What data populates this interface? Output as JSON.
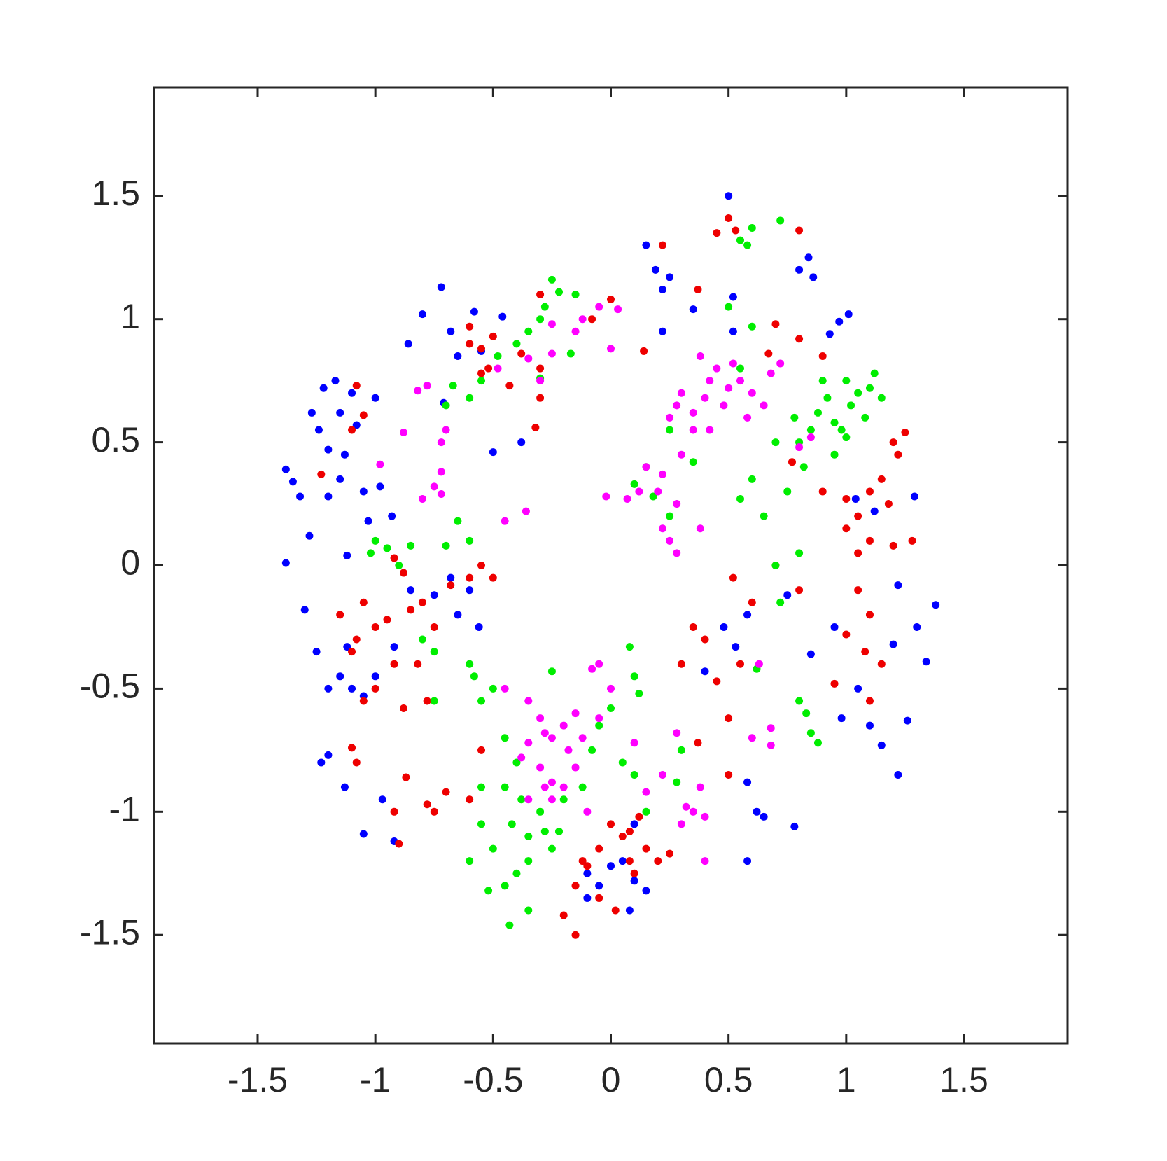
{
  "chart_data": {
    "type": "scatter",
    "xlim": [
      -1.94,
      1.94
    ],
    "ylim": [
      -1.94,
      1.94
    ],
    "xticks": [
      -1.5,
      -1,
      -0.5,
      0,
      0.5,
      1,
      1.5
    ],
    "yticks": [
      -1.5,
      -1,
      -0.5,
      0,
      0.5,
      1,
      1.5
    ],
    "grid": false,
    "series": [
      {
        "color": "#0000ff",
        "x": [
          -1.38,
          -1.35,
          -1.38,
          -1.32,
          -1.28,
          -1.27,
          -1.24,
          -1.22,
          -1.2,
          -1.17,
          -1.15,
          -1.13,
          -1.1,
          -1.08,
          -1.05,
          -1.03,
          -1.0,
          -0.98,
          -0.93,
          -1.15,
          -1.2,
          -1.12,
          -0.86,
          -0.8,
          -0.72,
          -0.68,
          -0.65,
          -0.58,
          -0.55,
          -0.46,
          -0.5,
          -0.38,
          -0.71,
          0.15,
          0.19,
          0.25,
          0.22,
          0.22,
          0.35,
          0.5,
          0.52,
          0.52,
          0.8,
          0.84,
          0.86,
          0.97,
          1.01,
          0.93,
          1.04,
          1.12,
          1.29,
          1.22,
          1.38,
          1.3,
          1.2,
          1.34,
          1.26,
          1.1,
          1.15,
          1.22,
          0.98,
          1.05,
          0.95,
          0.85,
          0.75,
          0.58,
          0.48,
          0.4,
          0.53,
          0.58,
          0.62,
          0.65,
          0.58,
          0.78,
          -0.97,
          -0.92,
          -1.05,
          -1.13,
          -1.2,
          -1.23,
          -1.3,
          -1.25,
          -1.2,
          -1.15,
          -1.12,
          -1.1,
          -1.05,
          -1.0,
          -0.92,
          -0.85,
          -0.75,
          -0.68,
          -0.6,
          -0.56,
          -0.65,
          -0.1,
          -0.05,
          0.0,
          0.05,
          0.1,
          0.15,
          0.08,
          -0.1,
          0.1
        ],
        "values": [
          0.01,
          0.34,
          0.39,
          0.28,
          0.12,
          0.62,
          0.55,
          0.72,
          0.47,
          0.75,
          0.62,
          0.45,
          0.7,
          0.57,
          0.3,
          0.18,
          0.68,
          0.32,
          0.2,
          0.35,
          0.28,
          0.04,
          0.9,
          1.02,
          1.13,
          0.95,
          0.85,
          1.03,
          0.87,
          1.01,
          0.46,
          0.5,
          0.66,
          1.3,
          1.2,
          1.17,
          1.12,
          0.95,
          1.04,
          1.5,
          1.09,
          0.95,
          1.2,
          1.25,
          1.17,
          0.99,
          1.02,
          0.94,
          0.27,
          0.22,
          0.28,
          -0.08,
          -0.16,
          -0.25,
          -0.32,
          -0.39,
          -0.63,
          -0.65,
          -0.73,
          -0.85,
          -0.62,
          -0.5,
          -0.25,
          -0.36,
          -0.12,
          -0.2,
          -0.25,
          -0.43,
          -0.33,
          -0.88,
          -1.0,
          -1.02,
          -1.2,
          -1.06,
          -0.95,
          -1.12,
          -1.09,
          -0.9,
          -0.77,
          -0.8,
          -0.18,
          -0.35,
          -0.5,
          -0.45,
          -0.33,
          -0.5,
          -0.53,
          -0.45,
          -0.33,
          -0.1,
          -0.12,
          -0.05,
          -0.1,
          -0.25,
          -0.2,
          -1.25,
          -1.3,
          -1.22,
          -1.2,
          -1.28,
          -1.32,
          -1.4,
          -1.35,
          -1.05
        ]
      },
      {
        "color": "#ee0000",
        "x": [
          -1.05,
          -1.1,
          -1.08,
          -1.23,
          -0.6,
          -0.55,
          -0.6,
          -0.55,
          -0.52,
          -0.5,
          -0.43,
          -0.38,
          -0.3,
          -0.3,
          -0.32,
          -0.3,
          -0.08,
          0,
          0.14,
          0.22,
          0.37,
          0.45,
          0.5,
          0.53,
          0.8,
          0.67,
          0.7,
          0.8,
          0.9,
          0.77,
          0.9,
          1.0,
          1.05,
          1.1,
          1.15,
          1.18,
          1.2,
          1.25,
          1.22,
          1.0,
          1.05,
          1.1,
          1.2,
          1.28,
          1.05,
          1.1,
          1.0,
          1.08,
          1.15,
          0.95,
          1.1,
          0.8,
          0.7,
          0.6,
          0.52,
          0.35,
          0.4,
          0.3,
          0.45,
          0.55,
          0.5,
          0.5,
          0.37,
          -0.1,
          -0.05,
          0.0,
          0.05,
          0.08,
          0.1,
          0.15,
          0.2,
          0.25,
          0.12,
          0.08,
          -0.15,
          -0.2,
          -0.15,
          -0.05,
          0.02,
          -0.12,
          -0.55,
          -0.6,
          -0.7,
          -0.78,
          -0.75,
          -0.87,
          -0.92,
          -0.9,
          -1.08,
          -1.1,
          -1.05,
          -1.0,
          -0.92,
          -0.88,
          -0.82,
          -0.78,
          -1.15,
          -1.08,
          -1.1,
          -1.05,
          -1.0,
          -0.95,
          -0.85,
          -0.8,
          -0.75,
          -0.68,
          -0.6,
          -0.55,
          -0.5,
          -0.88,
          -0.92
        ],
        "values": [
          0.61,
          0.55,
          0.73,
          0.37,
          0.97,
          0.88,
          0.9,
          0.78,
          0.8,
          0.93,
          0.73,
          0.86,
          0.68,
          0.8,
          0.56,
          1.1,
          1.0,
          1.08,
          0.87,
          1.3,
          1.12,
          1.35,
          1.41,
          1.36,
          1.36,
          0.86,
          0.98,
          0.92,
          0.85,
          0.42,
          0.3,
          0.27,
          0.2,
          0.3,
          0.35,
          0.25,
          0.5,
          0.54,
          0.45,
          0.15,
          0.05,
          0.1,
          0.08,
          0.1,
          -0.1,
          -0.2,
          -0.28,
          -0.35,
          -0.4,
          -0.48,
          -0.55,
          -0.1,
          0.0,
          -0.15,
          -0.05,
          -0.25,
          -0.3,
          -0.4,
          -0.47,
          -0.4,
          -0.62,
          -0.85,
          -0.72,
          -1.22,
          -1.15,
          -1.05,
          -1.1,
          -1.2,
          -1.25,
          -1.15,
          -1.2,
          -1.17,
          -1.02,
          -1.08,
          -1.3,
          -1.42,
          -1.5,
          -1.35,
          -1.4,
          -1.2,
          -0.75,
          -0.95,
          -0.92,
          -0.97,
          -1.0,
          -0.86,
          -1.0,
          -1.13,
          -0.8,
          -0.74,
          -0.55,
          -0.5,
          -0.4,
          -0.58,
          -0.4,
          -0.55,
          -0.2,
          -0.3,
          -0.35,
          -0.15,
          -0.25,
          -0.22,
          -0.18,
          -0.15,
          -0.25,
          -0.08,
          -0.05,
          0.0,
          -0.05,
          -0.03,
          0.03
        ]
      },
      {
        "color": "#00ee00",
        "x": [
          -0.7,
          -0.67,
          -0.6,
          -0.55,
          -0.48,
          -0.4,
          -0.35,
          -0.3,
          -0.3,
          -0.28,
          -0.25,
          -0.22,
          -0.15,
          -0.17,
          -0.85,
          -0.9,
          -0.95,
          -1.0,
          -1.02,
          -0.7,
          -0.65,
          -0.6,
          -0.8,
          -0.75,
          -0.75,
          -0.6,
          -0.58,
          -0.5,
          -0.55,
          -0.45,
          -0.4,
          -0.55,
          -0.45,
          -0.38,
          -0.42,
          -0.35,
          -0.3,
          -0.28,
          -0.25,
          -0.35,
          -0.4,
          -0.45,
          -0.5,
          -0.55,
          -0.6,
          -0.52,
          -0.43,
          -0.35,
          -0.22,
          -0.2,
          -0.12,
          -0.08,
          -0.05,
          0.0,
          0.08,
          0.1,
          0.12,
          0.05,
          0.1,
          0.15,
          0.3,
          0.28,
          -0.25,
          0.55,
          0.58,
          0.6,
          0.72,
          0.5,
          0.6,
          0.55,
          0.7,
          0.8,
          0.85,
          0.78,
          0.88,
          0.92,
          0.95,
          0.98,
          1.0,
          1.02,
          1.05,
          1.0,
          1.1,
          1.12,
          1.15,
          1.08,
          0.9,
          0.95,
          0.82,
          0.75,
          0.65,
          0.55,
          0.6,
          0.7,
          0.72,
          0.8,
          0.62,
          0.8,
          0.83,
          0.85,
          0.88,
          0.35,
          0.25,
          0.15,
          0.18,
          0.25,
          0.1
        ],
        "values": [
          0.65,
          0.73,
          0.68,
          0.75,
          0.85,
          0.9,
          0.95,
          0.76,
          1.0,
          1.05,
          1.16,
          1.11,
          1.1,
          0.86,
          0.08,
          0.0,
          0.07,
          0.1,
          0.05,
          0.08,
          0.18,
          0.1,
          -0.3,
          -0.55,
          -0.35,
          -0.4,
          -0.45,
          -0.5,
          -0.55,
          -0.7,
          -0.8,
          -0.9,
          -0.9,
          -0.95,
          -1.05,
          -1.1,
          -1.0,
          -1.08,
          -1.15,
          -1.2,
          -1.25,
          -1.3,
          -1.15,
          -1.05,
          -1.2,
          -1.32,
          -1.46,
          -1.4,
          -1.08,
          -0.95,
          -0.9,
          -0.75,
          -0.65,
          -0.58,
          -0.33,
          -0.45,
          -0.52,
          -0.8,
          -0.85,
          -1.0,
          -0.75,
          -0.88,
          -0.43,
          1.32,
          1.3,
          1.37,
          1.4,
          1.05,
          0.97,
          0.8,
          0.5,
          0.5,
          0.55,
          0.6,
          0.62,
          0.68,
          0.58,
          0.55,
          0.52,
          0.65,
          0.7,
          0.75,
          0.72,
          0.78,
          0.68,
          0.6,
          0.75,
          0.45,
          0.4,
          0.3,
          0.2,
          0.27,
          0.35,
          0.0,
          -0.15,
          0.05,
          -0.42,
          -0.55,
          -0.6,
          -0.68,
          -0.72,
          0.42,
          0.55,
          0.4,
          0.28,
          0.2,
          0.33
        ]
      },
      {
        "color": "#ff00ff",
        "x": [
          -0.82,
          -0.78,
          -0.72,
          -0.7,
          -0.48,
          -0.35,
          -0.3,
          -0.25,
          -0.15,
          -0.12,
          -0.05,
          0.03,
          0.0,
          -0.25,
          -0.72,
          -0.75,
          -0.8,
          -0.72,
          -0.88,
          -0.98,
          -0.45,
          -0.36,
          -0.02,
          0.07,
          0.12,
          0.2,
          0.28,
          0.15,
          0.22,
          0.3,
          0.35,
          0.25,
          0.28,
          0.3,
          0.35,
          0.4,
          0.42,
          0.45,
          0.5,
          0.52,
          0.55,
          0.48,
          0.6,
          0.58,
          0.65,
          0.68,
          0.72,
          0.38,
          0.42,
          0.25,
          0.28,
          0.38,
          0.22,
          0.8,
          0.85,
          -0.35,
          -0.3,
          -0.28,
          -0.25,
          -0.2,
          -0.15,
          -0.18,
          -0.35,
          -0.38,
          -0.3,
          -0.28,
          -0.35,
          -0.25,
          -0.2,
          -0.15,
          -0.12,
          -0.05,
          -0.08,
          -0.05,
          0.0,
          0.1,
          0.15,
          0.22,
          0.3,
          0.35,
          0.38,
          0.32,
          0.4,
          0.28,
          0.63,
          0.6,
          0.68,
          0.68,
          0.4,
          -0.1,
          -0.25,
          -0.45
        ],
        "values": [
          0.71,
          0.73,
          0.5,
          0.55,
          0.8,
          0.84,
          0.75,
          0.98,
          0.95,
          1.0,
          1.05,
          1.04,
          0.88,
          0.86,
          0.38,
          0.32,
          0.27,
          0.29,
          0.54,
          0.41,
          0.18,
          0.22,
          0.28,
          0.27,
          0.3,
          0.3,
          0.25,
          0.4,
          0.37,
          0.45,
          0.55,
          0.6,
          0.65,
          0.7,
          0.62,
          0.68,
          0.75,
          0.8,
          0.72,
          0.82,
          0.75,
          0.65,
          0.7,
          0.6,
          0.65,
          0.78,
          0.82,
          0.85,
          0.55,
          0.1,
          0.05,
          0.15,
          0.15,
          0.48,
          0.52,
          -0.55,
          -0.62,
          -0.68,
          -0.7,
          -0.65,
          -0.6,
          -0.75,
          -0.72,
          -0.78,
          -0.82,
          -0.9,
          -0.95,
          -0.95,
          -0.9,
          -0.82,
          -0.7,
          -0.62,
          -0.42,
          -0.4,
          -0.5,
          -0.72,
          -0.92,
          -0.85,
          -1.05,
          -1.0,
          -0.9,
          -0.98,
          -1.02,
          -0.68,
          -0.4,
          -0.7,
          -0.66,
          -0.73,
          -1.2,
          -1.0,
          -0.88,
          -0.5
        ]
      }
    ]
  }
}
